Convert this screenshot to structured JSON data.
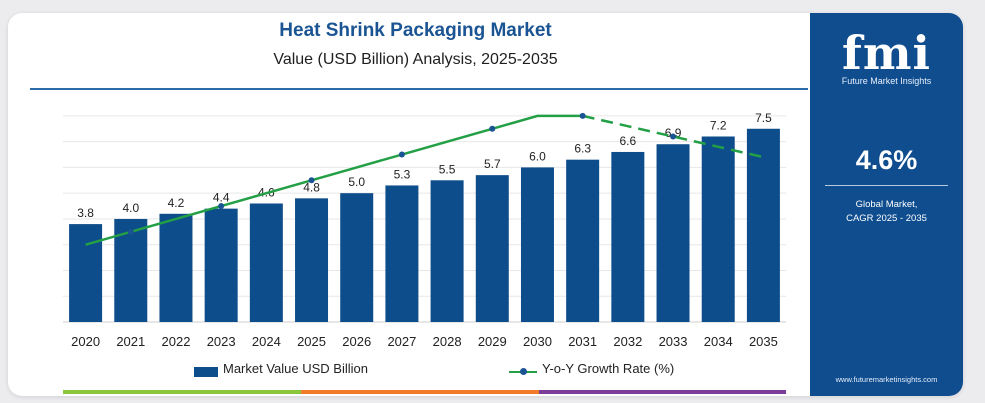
{
  "chart_data": {
    "type": "bar",
    "title": "Heat Shrink Packaging Market",
    "subtitle": "Value (USD Billion) Analysis, 2025-2035",
    "categories": [
      "2020",
      "2021",
      "2022",
      "2023",
      "2024",
      "2025",
      "2026",
      "2027",
      "2028",
      "2029",
      "2030",
      "2031",
      "2032",
      "2033",
      "2034",
      "2035"
    ],
    "series": [
      {
        "name": "Market Value USD Billion",
        "type": "bar",
        "color": "#0e4d8b",
        "values": [
          3.8,
          4.0,
          4.2,
          4.4,
          4.6,
          4.8,
          5.0,
          5.3,
          5.5,
          5.7,
          6.0,
          6.3,
          6.6,
          6.9,
          7.2,
          7.5
        ],
        "labels": [
          "3.8",
          "4.0",
          "4.2",
          "4.4",
          "4.6",
          "4.8",
          "5.0",
          "5.3",
          "5.5",
          "5.7",
          "6.0",
          "6.3",
          "6.6",
          "6.9",
          "7.2",
          "7.5"
        ]
      },
      {
        "name": "Y-o-Y Growth Rate (%)",
        "type": "line",
        "color": "#23a046",
        "marker_color": "#1a5493",
        "values": [
          3.0,
          3.5,
          4.0,
          4.5,
          5.0,
          5.5,
          6.0,
          6.5,
          7.0,
          7.5,
          8.0,
          8.0,
          7.6,
          7.2,
          6.8,
          6.4
        ]
      }
    ],
    "ylim": [
      0,
      8.5
    ],
    "grid": true,
    "legend": "bottom"
  },
  "sidebar": {
    "logo": "fmi",
    "company": "Future Market Insights",
    "cagr_value": "4.6%",
    "cagr_label_1": "Global Market,",
    "cagr_label_2": "CAGR 2025 - 2035",
    "website": "www.futuremarketinsights.com"
  },
  "colors": {
    "bar": "#0e4d8b",
    "line": "#23a046",
    "sidebar": "#0f4d8f",
    "title": "#1a5493"
  }
}
